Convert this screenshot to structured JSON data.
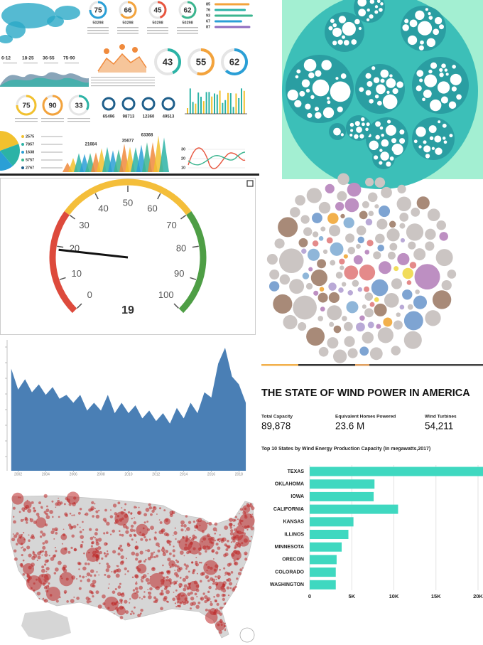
{
  "chart_data": [
    {
      "type": "infographic",
      "rings": [
        75,
        66,
        45,
        62
      ],
      "ring_colors": [
        "#2a9fd6",
        "#f3a33c",
        "#e8563f",
        "#3bb58f"
      ],
      "ring_captions": [
        "50298",
        "50298",
        "50298",
        "50298"
      ],
      "rings2": [
        43,
        55,
        62
      ],
      "rings2_colors": [
        "#2bb3a6",
        "#f3a33c",
        "#2a9fd6"
      ],
      "rings3": [
        75,
        90,
        33
      ],
      "rings3_colors": [
        "#f2c12e",
        "#f3a33c",
        "#2bb3a6"
      ],
      "progress": [
        85,
        76,
        93,
        67,
        87
      ],
      "progress_colors": [
        "#f3a33c",
        "#2bb3a6",
        "#3bb58f",
        "#2a9fd6",
        "#8e6bbf"
      ],
      "ranges": [
        "6-12",
        "18-25",
        "36-55",
        "75-90"
      ],
      "totals": [
        65496,
        98713,
        12360,
        49513
      ],
      "legend": [
        2575,
        7857,
        1638,
        5757,
        2767
      ],
      "legend_colors": [
        "#f2c12e",
        "#2bb3a6",
        "#2a9fd6",
        "#3bb58f",
        "#1f5f8b"
      ],
      "peaks": [
        21684,
        35677,
        63368
      ],
      "line_yticks": [
        30,
        20,
        10
      ]
    },
    {
      "type": "gauge",
      "value": 19,
      "range": [
        0,
        100
      ],
      "ticks": [
        0,
        10,
        20,
        30,
        40,
        50,
        60,
        70,
        80,
        90,
        100
      ],
      "bands": [
        {
          "from": 0,
          "to": 30,
          "color": "#dd4a3c"
        },
        {
          "from": 30,
          "to": 70,
          "color": "#f4be3a"
        },
        {
          "from": 70,
          "to": 100,
          "color": "#4e9e45"
        }
      ]
    },
    {
      "type": "area",
      "color": "#4a7fb5",
      "x": [
        2001.5,
        2002,
        2002.5,
        2003,
        2003.5,
        2004,
        2004.5,
        2005,
        2005.5,
        2006,
        2006.5,
        2007,
        2007.5,
        2008,
        2008.5,
        2009,
        2009.5,
        2010,
        2010.5,
        2011,
        2011.5,
        2012,
        2012.5,
        2013,
        2013.5,
        2014,
        2014.5,
        2015,
        2015.5,
        2016,
        2016.5,
        2017,
        2017.5,
        2018,
        2018.5
      ],
      "values": [
        78,
        62,
        70,
        60,
        66,
        58,
        64,
        55,
        58,
        52,
        58,
        46,
        52,
        46,
        58,
        44,
        52,
        44,
        50,
        40,
        46,
        38,
        44,
        36,
        48,
        40,
        52,
        44,
        60,
        56,
        82,
        94,
        72,
        66,
        52
      ],
      "xlim": [
        2001.2,
        2018.6
      ],
      "ylim": [
        0,
        100
      ],
      "xticks": [
        2002,
        2004,
        2006,
        2008,
        2010,
        2012,
        2014,
        2016,
        2018
      ]
    },
    {
      "type": "bar",
      "orientation": "horizontal",
      "color": "#3fd8c0",
      "title": "THE STATE OF WIND POWER IN AMERICA",
      "stats": [
        {
          "label": "Total Capacity",
          "value": "89,878"
        },
        {
          "label": "Equivalent Homes Powered",
          "value": "23.6 M"
        },
        {
          "label": "Wind Turbines",
          "value": "54,211"
        }
      ],
      "subtitle": "Top 10 States by Wind Energy Production Capacity (In megawatts,2017)",
      "categories": [
        "TEXAS",
        "OKLAHOMA",
        "IOWA",
        "CALIFORNIA",
        "KANSAS",
        "ILLINOS",
        "MINNESOTA",
        "ORECON",
        "COLORADO",
        "WASHINGTON"
      ],
      "values": [
        21000,
        7700,
        7600,
        10500,
        5200,
        4600,
        3800,
        3200,
        3100,
        3100
      ],
      "xlim": [
        0,
        20000
      ],
      "xticks": [
        0,
        {
          "value": 5000,
          "label": "5K"
        },
        {
          "value": 10000,
          "label": "10K"
        },
        {
          "value": 15000,
          "label": "15K"
        },
        {
          "value": 20000,
          "label": "20K"
        }
      ],
      "grid": true
    }
  ]
}
